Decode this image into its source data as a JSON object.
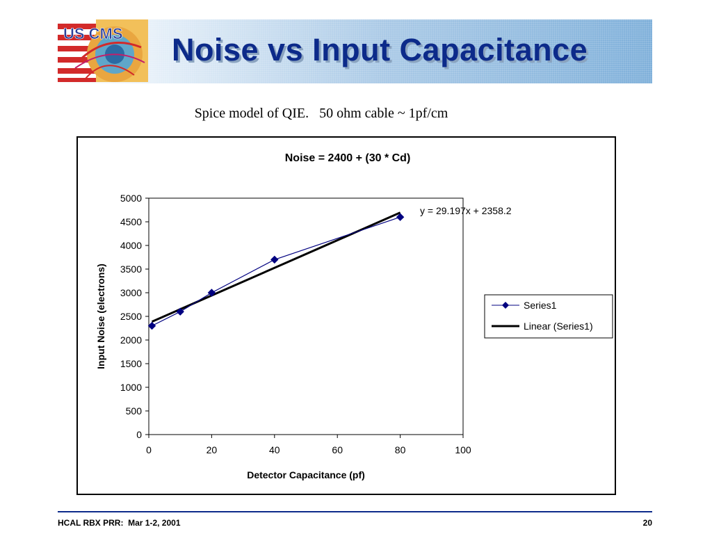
{
  "slide": {
    "title": "Noise vs Input Capacitance",
    "subtitle": "Spice model of QIE.   50 ohm cable ~ 1pf/cm",
    "logo_text": "US CMS",
    "footer_left": "HCAL RBX PRR:  Mar 1-2, 2001",
    "page_number": "20"
  },
  "colors": {
    "title": "#0c2a8a",
    "series": "#000080",
    "trendline": "#000000"
  },
  "chart_data": {
    "type": "scatter",
    "title": "Noise = 2400 + (30 * Cd)",
    "xlabel": "Detector Capacitance (pf)",
    "ylabel": "Input Noise (electrons)",
    "xlim": [
      0,
      100
    ],
    "ylim": [
      0,
      5000
    ],
    "x_ticks": [
      0,
      20,
      40,
      60,
      80,
      100
    ],
    "y_ticks": [
      0,
      500,
      1000,
      1500,
      2000,
      2500,
      3000,
      3500,
      4000,
      4500,
      5000
    ],
    "series": [
      {
        "name": "Series1",
        "x": [
          1,
          10,
          20,
          40,
          80
        ],
        "y": [
          2300,
          2600,
          3000,
          3700,
          4600
        ],
        "marker": "diamond",
        "line": true
      }
    ],
    "trendline": {
      "name": "Linear (Series1)",
      "slope": 29.197,
      "intercept": 2358.2,
      "x_range": [
        1,
        80
      ],
      "equation_label": "y = 29.197x + 2358.2"
    },
    "grid": false,
    "legend_position": "right"
  }
}
